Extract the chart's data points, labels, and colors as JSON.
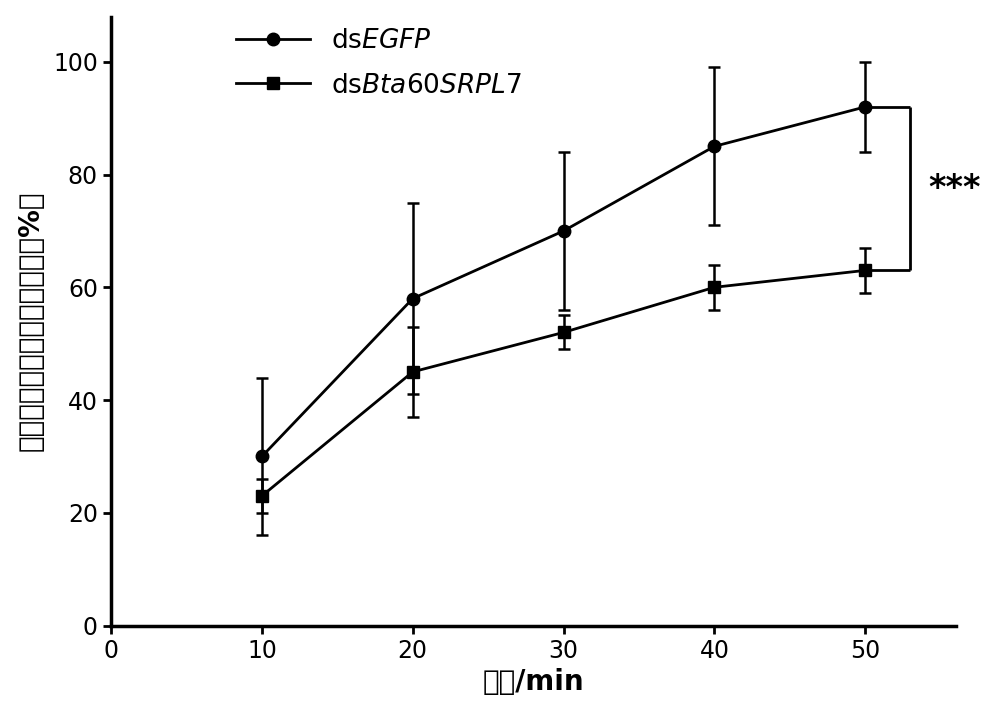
{
  "x": [
    10,
    20,
    30,
    40,
    50
  ],
  "egfp_y": [
    30,
    58,
    70,
    85,
    92
  ],
  "egfp_yerr": [
    14,
    17,
    14,
    14,
    8
  ],
  "srpl7_y": [
    23,
    45,
    52,
    60,
    63
  ],
  "srpl7_yerr": [
    3,
    8,
    3,
    4,
    4
  ],
  "xlabel": "时间/min",
  "ylabel": "找到寄主植物的烟粉虚比例（%）",
  "xlim": [
    5,
    56
  ],
  "ylim": [
    0,
    108
  ],
  "yticks": [
    0,
    20,
    40,
    60,
    80,
    100
  ],
  "xticks": [
    0,
    10,
    20,
    30,
    40,
    50
  ],
  "line_color": "#000000",
  "marker_size": 9,
  "line_width": 2.0,
  "capsize": 4,
  "significance_text": "***",
  "background_color": "#ffffff",
  "font_size_label": 20,
  "font_size_tick": 17,
  "font_size_legend": 19,
  "font_size_sig": 24
}
